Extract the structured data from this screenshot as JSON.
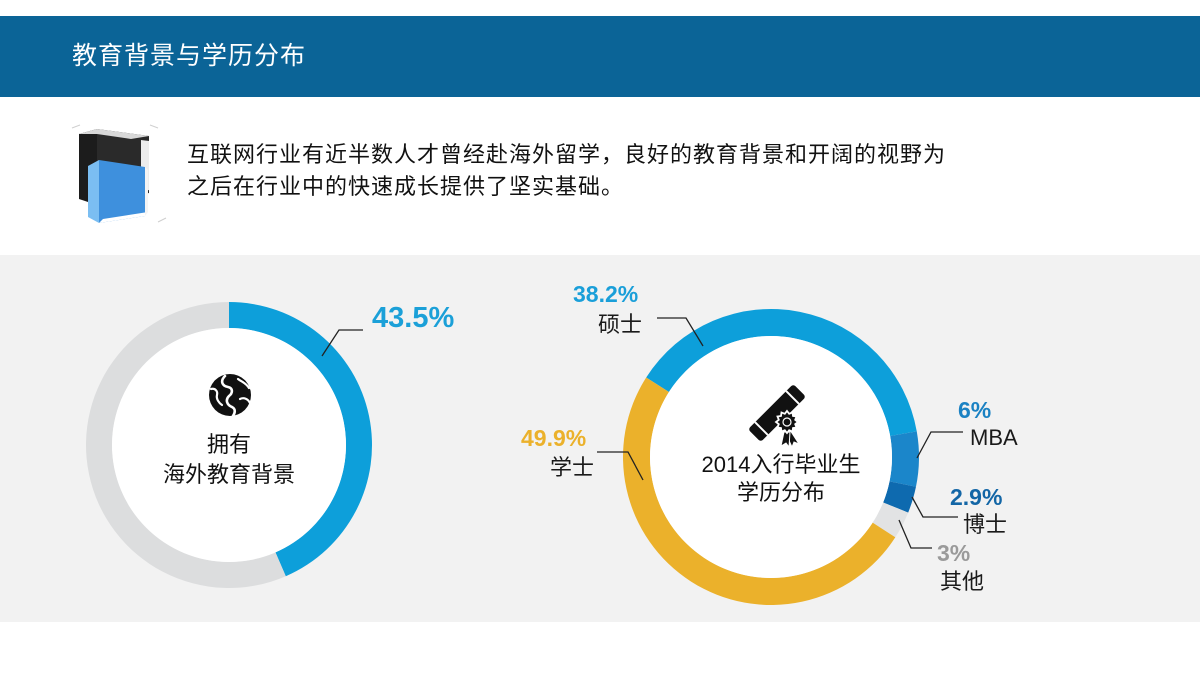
{
  "header": {
    "title": "教育背景与学历分布",
    "color": "#0B6497"
  },
  "intro": {
    "icon": "book-icon",
    "lines": [
      "互联网行业有近半数人才曾经赴海外留学，良好的教育背景和开阔的视野为",
      "之后在行业中的快速成长提供了坚实基础。"
    ]
  },
  "chart_data": [
    {
      "type": "pie",
      "donut": true,
      "center_icon": "globe-icon",
      "center_label": [
        "拥有",
        "海外教育背景"
      ],
      "slices": [
        {
          "value": 43.5,
          "value_label": "43.5%",
          "color": "#0D9FDA",
          "label_color": "#1BA0D8"
        },
        {
          "value": 56.5,
          "color": "#DCDDDE"
        }
      ]
    },
    {
      "type": "pie",
      "donut": true,
      "center_icon": "certificate-icon",
      "center_label": [
        "2014入行毕业生",
        "学历分布"
      ],
      "slices": [
        {
          "label": "硕士",
          "value": 38.2,
          "value_label": "38.2%",
          "color": "#0D9FDA",
          "label_color": "#1A9FD9"
        },
        {
          "label": "MBA",
          "value": 6,
          "value_label": "6%",
          "color": "#1B86CA",
          "label_color": "#1B82C3"
        },
        {
          "label": "博士",
          "value": 2.9,
          "value_label": "2.9%",
          "color": "#0E6AAF",
          "label_color": "#1366A6"
        },
        {
          "label": "其他",
          "value": 3,
          "value_label": "3%",
          "color": "#E2E3E4",
          "label_color": "#9A9A9A"
        },
        {
          "label": "学士",
          "value": 49.9,
          "value_label": "49.9%",
          "color": "#EBB12B",
          "label_color": "#EBB12B"
        }
      ]
    }
  ]
}
